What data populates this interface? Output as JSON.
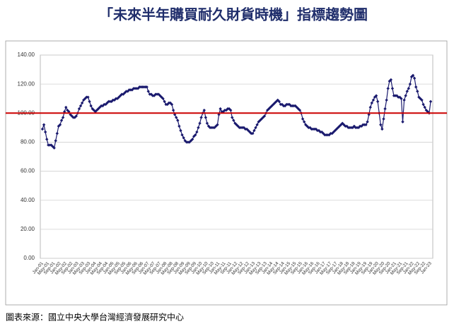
{
  "chart_data": {
    "type": "line",
    "title": "「未來半年購買耐久財貨時機」指標趨勢圖",
    "source": "圖表來源：國立中央大學台灣經濟發展研究中心",
    "categories": [
      "Jan-01",
      null,
      null,
      null,
      "May-01",
      null,
      null,
      null,
      "Sep-01",
      null,
      null,
      null,
      "Jan-02",
      null,
      null,
      null,
      "May-02",
      null,
      null,
      null,
      "Sep-02",
      null,
      null,
      null,
      "Jan-03",
      null,
      null,
      null,
      "May-03",
      null,
      null,
      null,
      "Sep-03",
      null,
      null,
      null,
      "Jan-04",
      null,
      null,
      null,
      "May-04",
      null,
      null,
      null,
      "Sep-04",
      null,
      null,
      null,
      "Jan-05",
      null,
      null,
      null,
      "May-05",
      null,
      null,
      null,
      "Sep-05",
      null,
      null,
      null,
      "Jan-06",
      null,
      null,
      null,
      "May-06",
      null,
      null,
      null,
      "Sep-06",
      null,
      null,
      null,
      "Jan-07",
      null,
      null,
      null,
      "May-07",
      null,
      null,
      null,
      "Sep-07",
      null,
      null,
      null,
      "Jan-08",
      null,
      null,
      null,
      "May-08",
      null,
      null,
      null,
      "Sep-08",
      null,
      null,
      null,
      "Jan-09",
      null,
      null,
      null,
      "May-09",
      null,
      null,
      null,
      "Sep-09",
      null,
      null,
      null,
      "Jan-10",
      null,
      null,
      null,
      "May-10",
      null,
      null,
      null,
      "Sep-10",
      null,
      null,
      null,
      "Jan-11",
      null,
      null,
      null,
      "May-11",
      null,
      null,
      null,
      "Sep-11",
      null,
      null,
      null,
      "Jan-12",
      null,
      null,
      null,
      "May-12",
      null,
      null,
      null,
      "Sep-12",
      null,
      null,
      null,
      "Jan-13",
      null,
      null,
      null,
      "May-13",
      null,
      null,
      null,
      "Sep-13",
      null,
      null,
      null,
      "Jan-14",
      null,
      null,
      null,
      "May-14",
      null,
      null,
      null,
      "Sep-14",
      null,
      null,
      null,
      "Jan-15",
      null,
      null,
      null,
      "May-15",
      null,
      null,
      null,
      "Sep-15",
      null,
      null,
      null,
      "Jan-16",
      null,
      null,
      null,
      "May-16",
      null,
      null,
      null,
      "Sep-16",
      null,
      null,
      null,
      "Jan-17",
      null,
      null,
      null,
      "May-17",
      null,
      null,
      null,
      "Sep-17",
      null,
      null,
      null,
      "Jan-18",
      null,
      null,
      null,
      "May-18",
      null,
      null,
      null,
      "Sep-18",
      null,
      null,
      null,
      "Jan-19",
      null,
      null,
      null,
      "May-19",
      null,
      null,
      null,
      "Sep-19",
      null,
      null,
      null,
      "Jan-20",
      null,
      null,
      null,
      "May-20",
      null,
      null,
      null,
      "Sep-20",
      null,
      null,
      null,
      "Jan-21",
      null,
      null,
      null,
      "May-21",
      null,
      null,
      null,
      "Sep-21",
      null,
      null,
      null,
      "Jan-22",
      null,
      null,
      null,
      "May-22",
      null,
      null,
      null,
      "Sep-22",
      null,
      null,
      null,
      "Jan-23"
    ],
    "series": [
      {
        "name": null,
        "color": "#1a1a6e",
        "values": [
          89,
          92,
          87,
          82,
          78,
          78,
          78,
          77,
          76,
          81,
          86,
          91,
          92,
          95,
          97,
          101,
          104,
          102,
          101,
          99,
          98,
          97,
          97,
          98,
          100,
          103,
          105,
          107,
          109,
          110,
          111,
          111,
          108,
          105,
          103,
          102,
          101,
          102,
          103,
          104,
          105,
          105,
          106,
          106,
          107,
          108,
          108,
          108,
          109,
          109,
          110,
          110,
          111,
          112,
          113,
          113,
          114,
          115,
          115,
          116,
          116,
          116,
          117,
          117,
          117,
          117,
          118,
          118,
          118,
          118,
          118,
          118,
          115,
          113,
          113,
          112,
          112,
          113,
          113,
          113,
          112,
          111,
          110,
          108,
          106,
          106,
          107,
          107,
          106,
          102,
          99,
          97,
          95,
          91,
          88,
          85,
          83,
          81,
          80,
          80,
          80,
          81,
          82,
          84,
          85,
          87,
          90,
          93,
          97,
          100,
          102,
          97,
          93,
          91,
          90,
          90,
          90,
          90,
          91,
          92,
          99,
          103,
          101,
          101,
          102,
          102,
          103,
          103,
          102,
          97,
          95,
          93,
          92,
          91,
          90,
          90,
          90,
          90,
          89,
          89,
          88,
          87,
          86,
          86,
          88,
          90,
          92,
          94,
          95,
          96,
          97,
          98,
          100,
          102,
          103,
          104,
          105,
          106,
          107,
          108,
          109,
          108,
          106,
          106,
          105,
          105,
          106,
          106,
          106,
          105,
          105,
          105,
          105,
          104,
          103,
          102,
          100,
          96,
          94,
          92,
          91,
          90,
          90,
          89,
          89,
          89,
          89,
          88,
          88,
          87,
          87,
          86,
          85,
          85,
          85,
          85,
          86,
          86,
          87,
          88,
          89,
          90,
          91,
          92,
          93,
          92,
          91,
          91,
          90,
          90,
          90,
          90,
          91,
          90,
          90,
          90,
          91,
          91,
          92,
          92,
          92,
          94,
          99,
          104,
          107,
          109,
          111,
          112,
          108,
          100,
          92,
          89,
          96,
          103,
          109,
          117,
          122,
          123,
          117,
          112,
          112,
          112,
          111,
          111,
          110,
          94,
          109,
          112,
          115,
          117,
          120,
          125,
          126,
          124,
          118,
          115,
          111,
          110,
          109,
          106,
          104,
          102,
          101,
          100,
          108
        ]
      }
    ],
    "ylim": [
      0,
      140
    ],
    "yticks": [
      {
        "value": 0,
        "label": "0.00"
      },
      {
        "value": 20,
        "label": "20.00"
      },
      {
        "value": 40,
        "label": "40.00"
      },
      {
        "value": 60,
        "label": "60.00"
      },
      {
        "value": 80,
        "label": "80.00"
      },
      {
        "value": 100,
        "label": "100.00"
      },
      {
        "value": 120,
        "label": "120.00"
      },
      {
        "value": 140,
        "label": "140.00"
      }
    ],
    "grid": true,
    "reference_line": {
      "value": 100,
      "color": "#cc0000"
    }
  }
}
